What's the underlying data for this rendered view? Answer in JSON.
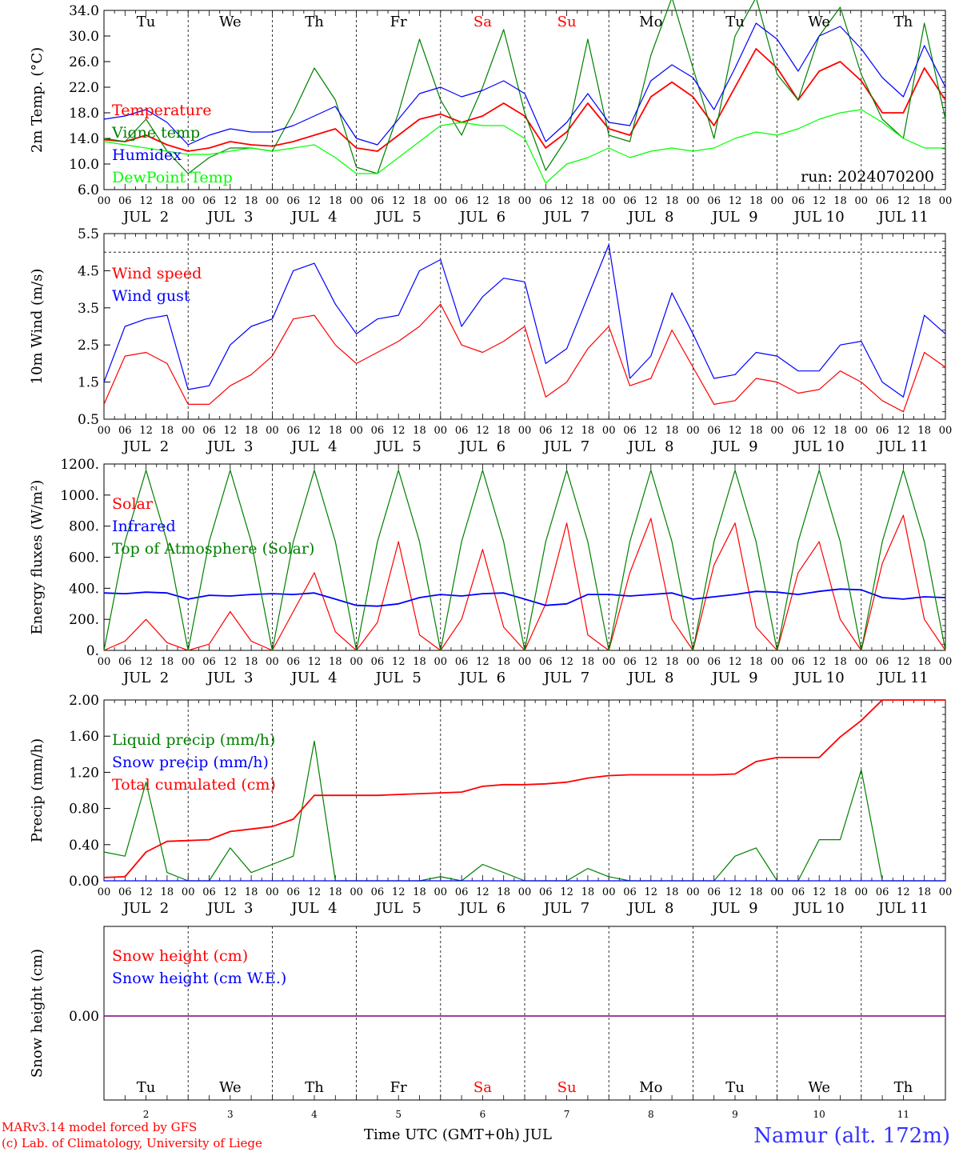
{
  "chart_data": [
    {
      "type": "line",
      "ylabel": "2m Temp. (°C)",
      "ylim": [
        6.0,
        34.0
      ],
      "yticks": [
        "6.0",
        "10.0",
        "14.0",
        "18.0",
        "22.0",
        "26.0",
        "30.0",
        "34.0"
      ],
      "annotation": "run: 2024070200",
      "legend_placement": "left",
      "x_hours": [
        0,
        6,
        12,
        18,
        24,
        30,
        36,
        42,
        48,
        54,
        60,
        66,
        72,
        78,
        84,
        90,
        96,
        102,
        108,
        114,
        120,
        126,
        132,
        138,
        144,
        150,
        156,
        162,
        168,
        174,
        180,
        186,
        192,
        198,
        204,
        210,
        216,
        222,
        228,
        234,
        240
      ],
      "series": [
        {
          "name": "Temperature",
          "color": "#ff0000",
          "values": [
            13.8,
            13.5,
            14.5,
            13.0,
            12.0,
            12.5,
            13.5,
            13.0,
            12.8,
            13.5,
            14.5,
            15.5,
            12.5,
            12.0,
            14.5,
            17.0,
            17.8,
            16.5,
            17.5,
            19.5,
            17.5,
            12.5,
            15.0,
            19.5,
            15.5,
            14.5,
            20.5,
            22.8,
            20.5,
            16.0,
            22.0,
            28.0,
            25.0,
            20.0,
            24.5,
            26.0,
            23.0,
            18.0,
            18.0,
            25.0,
            20.0
          ]
        },
        {
          "name": "Vigne temp",
          "color": "#008000",
          "values": [
            14.0,
            13.5,
            17.0,
            12.0,
            8.5,
            11.0,
            12.5,
            12.5,
            12.0,
            18.0,
            25.0,
            20.0,
            9.5,
            8.5,
            18.0,
            29.5,
            20.0,
            14.5,
            22.0,
            31.0,
            18.0,
            9.0,
            14.0,
            29.5,
            14.5,
            13.5,
            27.0,
            36.0,
            25.0,
            14.0,
            30.0,
            36.0,
            24.0,
            20.0,
            30.0,
            34.5,
            24.0,
            17.0,
            14.0,
            32.0,
            17.0
          ]
        },
        {
          "name": "Humidex",
          "color": "#0000ff",
          "values": [
            17.0,
            17.5,
            18.5,
            16.5,
            13.0,
            14.5,
            15.5,
            15.0,
            15.0,
            16.0,
            17.5,
            19.0,
            14.0,
            13.0,
            17.0,
            21.0,
            22.0,
            20.5,
            21.5,
            23.0,
            21.0,
            13.5,
            16.5,
            21.0,
            16.5,
            16.0,
            23.0,
            25.5,
            23.5,
            18.5,
            25.0,
            32.0,
            29.5,
            24.5,
            30.0,
            31.5,
            28.0,
            23.5,
            20.5,
            28.5,
            22.0
          ]
        },
        {
          "name": "DewPoint Temp",
          "color": "#00ff00",
          "values": [
            13.5,
            13.0,
            12.5,
            12.0,
            11.5,
            11.5,
            12.0,
            12.5,
            12.0,
            12.5,
            13.0,
            11.0,
            8.5,
            8.5,
            11.0,
            13.5,
            16.0,
            16.5,
            16.0,
            16.0,
            14.0,
            7.0,
            10.0,
            11.0,
            12.5,
            11.0,
            12.0,
            12.5,
            12.0,
            12.5,
            14.0,
            15.0,
            14.5,
            15.5,
            17.0,
            18.0,
            18.5,
            16.5,
            14.0,
            12.5,
            12.5
          ]
        }
      ]
    },
    {
      "type": "line",
      "ylabel": "10m Wind (m/s)",
      "ylim": [
        0.5,
        5.5
      ],
      "yticks": [
        "0.5",
        "1.5",
        "2.5",
        "3.5",
        "4.5",
        "5.5"
      ],
      "reference_line": 5.0,
      "legend_placement": "left",
      "x_hours": [
        0,
        6,
        12,
        18,
        24,
        30,
        36,
        42,
        48,
        54,
        60,
        66,
        72,
        78,
        84,
        90,
        96,
        102,
        108,
        114,
        120,
        126,
        132,
        138,
        144,
        150,
        156,
        162,
        168,
        174,
        180,
        186,
        192,
        198,
        204,
        210,
        216,
        222,
        228,
        234,
        240
      ],
      "series": [
        {
          "name": "Wind speed",
          "color": "#ff0000",
          "values": [
            0.9,
            2.2,
            2.3,
            2.0,
            0.9,
            0.9,
            1.4,
            1.7,
            2.2,
            3.2,
            3.3,
            2.5,
            2.0,
            2.3,
            2.6,
            3.0,
            3.6,
            2.5,
            2.3,
            2.6,
            3.0,
            1.1,
            1.5,
            2.4,
            3.0,
            1.4,
            1.6,
            2.9,
            1.9,
            0.9,
            1.0,
            1.6,
            1.5,
            1.2,
            1.3,
            1.8,
            1.5,
            1.0,
            0.7,
            2.3,
            1.9
          ]
        },
        {
          "name": "Wind gust",
          "color": "#0000ff",
          "values": [
            1.5,
            3.0,
            3.2,
            3.3,
            1.3,
            1.4,
            2.5,
            3.0,
            3.2,
            4.5,
            4.7,
            3.6,
            2.8,
            3.2,
            3.3,
            4.5,
            4.8,
            3.0,
            3.8,
            4.3,
            4.2,
            2.0,
            2.4,
            3.8,
            5.2,
            1.6,
            2.2,
            3.9,
            2.8,
            1.6,
            1.7,
            2.3,
            2.2,
            1.8,
            1.8,
            2.5,
            2.6,
            1.5,
            1.1,
            3.3,
            2.8
          ]
        }
      ]
    },
    {
      "type": "line",
      "ylabel": "Energy fluxes (W/m²)",
      "ylim": [
        0,
        1200
      ],
      "yticks": [
        "0.",
        "200.",
        "400.",
        "600.",
        "800.",
        "1000.",
        "1200."
      ],
      "legend_placement": "left",
      "x_hours": [
        0,
        6,
        12,
        18,
        24,
        30,
        36,
        42,
        48,
        54,
        60,
        66,
        72,
        78,
        84,
        90,
        96,
        102,
        108,
        114,
        120,
        126,
        132,
        138,
        144,
        150,
        156,
        162,
        168,
        174,
        180,
        186,
        192,
        198,
        204,
        210,
        216,
        222,
        228,
        234,
        240
      ],
      "series": [
        {
          "name": "Solar",
          "color": "#ff0000",
          "values": [
            0,
            60,
            200,
            50,
            0,
            40,
            250,
            60,
            0,
            250,
            500,
            120,
            0,
            180,
            700,
            100,
            0,
            200,
            650,
            150,
            0,
            300,
            820,
            100,
            0,
            500,
            850,
            200,
            0,
            550,
            820,
            150,
            0,
            500,
            700,
            200,
            0,
            560,
            870,
            200,
            0
          ]
        },
        {
          "name": "Infrared",
          "color": "#0000ff",
          "values": [
            370,
            365,
            375,
            370,
            330,
            355,
            350,
            360,
            365,
            360,
            370,
            330,
            290,
            285,
            300,
            340,
            360,
            350,
            365,
            370,
            330,
            290,
            300,
            360,
            360,
            350,
            360,
            370,
            330,
            345,
            360,
            380,
            375,
            360,
            380,
            395,
            390,
            340,
            330,
            345,
            340
          ]
        },
        {
          "name": "Top of Atmosphere (Solar)",
          "color": "#008000",
          "values": [
            0,
            700,
            1160,
            700,
            0,
            700,
            1160,
            700,
            0,
            700,
            1160,
            700,
            0,
            700,
            1160,
            700,
            0,
            700,
            1160,
            700,
            0,
            700,
            1160,
            700,
            0,
            700,
            1160,
            700,
            0,
            700,
            1160,
            700,
            0,
            700,
            1160,
            700,
            0,
            700,
            1160,
            700,
            0
          ]
        }
      ]
    },
    {
      "type": "line",
      "ylabel": "Precip (mm/h)",
      "ylim": [
        0,
        2.2
      ],
      "yticks": [
        "0.00",
        "0.40",
        "0.80",
        "1.20",
        "1.60",
        "2.00"
      ],
      "legend_placement": "left",
      "x_hours": [
        0,
        6,
        12,
        18,
        24,
        30,
        36,
        42,
        48,
        54,
        60,
        66,
        72,
        78,
        84,
        90,
        96,
        102,
        108,
        114,
        120,
        126,
        132,
        138,
        144,
        150,
        156,
        162,
        168,
        174,
        180,
        186,
        192,
        198,
        204,
        210,
        216,
        222,
        228,
        234,
        240
      ],
      "series": [
        {
          "name": "Liquid precip (mm/h)",
          "color": "#008000",
          "values": [
            0.35,
            0.3,
            1.2,
            0.1,
            0,
            0,
            0.4,
            0.1,
            0.2,
            0.3,
            1.7,
            0,
            0,
            0,
            0,
            0,
            0.05,
            0,
            0.2,
            0.1,
            0,
            0,
            0,
            0.15,
            0.05,
            0,
            0,
            0,
            0,
            0,
            0.3,
            0.4,
            0,
            0,
            0.5,
            0.5,
            1.35,
            0,
            0,
            0,
            0
          ]
        },
        {
          "name": "Snow precip (mm/h)",
          "color": "#0000ff",
          "values": [
            0,
            0,
            0,
            0,
            0,
            0,
            0,
            0,
            0,
            0,
            0,
            0,
            0,
            0,
            0,
            0,
            0,
            0,
            0,
            0,
            0,
            0,
            0,
            0,
            0,
            0,
            0,
            0,
            0,
            0,
            0,
            0,
            0,
            0,
            0,
            0,
            0,
            0,
            0,
            0,
            0
          ]
        },
        {
          "name": "Total cumulated (cm)",
          "color": "#ff0000",
          "values": [
            0.04,
            0.05,
            0.35,
            0.48,
            0.49,
            0.5,
            0.6,
            0.63,
            0.66,
            0.75,
            1.04,
            1.04,
            1.04,
            1.04,
            1.05,
            1.06,
            1.07,
            1.08,
            1.15,
            1.17,
            1.17,
            1.18,
            1.2,
            1.25,
            1.28,
            1.29,
            1.29,
            1.29,
            1.29,
            1.29,
            1.3,
            1.45,
            1.5,
            1.5,
            1.5,
            1.75,
            1.95,
            2.2,
            2.2,
            2.2,
            2.2
          ]
        }
      ]
    },
    {
      "type": "line",
      "ylabel": "Snow height (cm)",
      "yticks": [
        "0.00"
      ],
      "legend_placement": "left",
      "series": [
        {
          "name": "Snow height (cm)",
          "color": "#ff0000",
          "values": [
            0,
            0
          ]
        },
        {
          "name": "Snow height (cm W.E.)",
          "color": "#0000ff",
          "values": [
            0,
            0
          ]
        }
      ]
    }
  ],
  "axes": {
    "hour_ticks": [
      "00",
      "06",
      "12",
      "18"
    ],
    "end_tick": "00",
    "dates": [
      "JUL  2",
      "JUL  3",
      "JUL  4",
      "JUL  5",
      "JUL  6",
      "JUL  7",
      "JUL  8",
      "JUL  9",
      "JUL 10",
      "JUL 11"
    ],
    "weekdays": [
      "Tu",
      "We",
      "Th",
      "Fr",
      "Sa",
      "Su",
      "Mo",
      "Tu",
      "We",
      "Th"
    ],
    "weekend_flags": [
      false,
      false,
      false,
      false,
      true,
      true,
      false,
      false,
      false,
      false
    ],
    "day_numbers": [
      "2",
      "3",
      "4",
      "5",
      "6",
      "7",
      "8",
      "9",
      "10",
      "11"
    ],
    "xlabel": "Time UTC (GMT+0h) JUL"
  },
  "footer": {
    "credit_line1": "MARv3.14 model forced by GFS",
    "credit_line2": "(c) Lab. of Climatology, University of Liege",
    "location": "Namur (alt. 172m)"
  },
  "colors": {
    "red": "#ff0000",
    "blue": "#0000ff",
    "green": "#008000",
    "lime": "#00ff00",
    "purple": "#800080",
    "title_blue": "#3333ff"
  }
}
